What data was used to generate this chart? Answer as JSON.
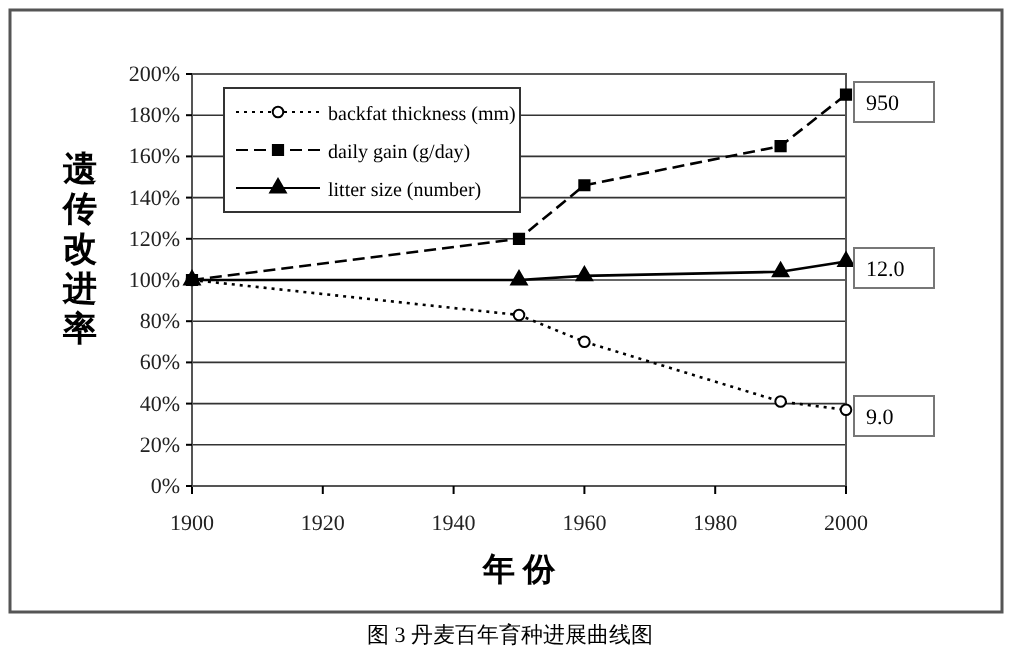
{
  "chart_data": {
    "type": "line",
    "xlabel": "年 份",
    "ylabel": "遗传改进率",
    "x": [
      1900,
      1950,
      1960,
      1990,
      2000
    ],
    "series": [
      {
        "name": "backfat thickness (mm)",
        "color": "#000000",
        "values": [
          100,
          83,
          70,
          41,
          37
        ],
        "marker": "circle",
        "line_style": "dotted"
      },
      {
        "name": "daily gain (g/day)",
        "color": "#000000",
        "values": [
          100,
          120,
          146,
          165,
          190
        ],
        "marker": "square",
        "line_style": "dashed"
      },
      {
        "name": "litter size (number)",
        "color": "#000000",
        "values": [
          100,
          100,
          102,
          104,
          109
        ],
        "marker": "triangle",
        "line_style": "solid"
      }
    ],
    "xlim": [
      1900,
      2000
    ],
    "xticks": [
      1900,
      1920,
      1940,
      1960,
      1980,
      2000
    ],
    "ylim": [
      0,
      200
    ],
    "yticks": [
      {
        "value": 0,
        "label": "0%"
      },
      {
        "value": 20,
        "label": "20%"
      },
      {
        "value": 40,
        "label": "40%"
      },
      {
        "value": 60,
        "label": "60%"
      },
      {
        "value": 80,
        "label": "80%"
      },
      {
        "value": 100,
        "label": "100%"
      },
      {
        "value": 120,
        "label": "120%"
      },
      {
        "value": 140,
        "label": "140%"
      },
      {
        "value": 160,
        "label": "160%"
      },
      {
        "value": 180,
        "label": "180%"
      },
      {
        "value": 200,
        "label": "200%"
      }
    ],
    "grid": "y",
    "legend": "top left",
    "annotations": [
      "950",
      "12.0",
      "9.0",
      "图 3  丹麦百年育种进展曲线图"
    ]
  }
}
